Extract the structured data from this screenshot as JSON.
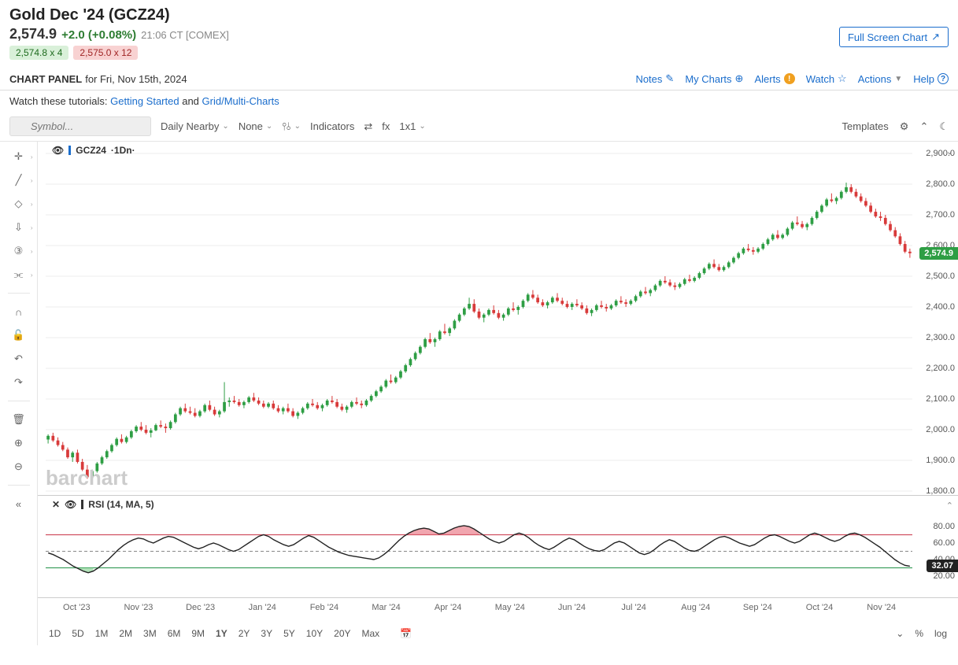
{
  "header": {
    "title": "Gold Dec '24 (GCZ24)",
    "price": "2,574.9",
    "change": "+2.0 (+0.08%)",
    "timestamp": "21:06 CT [COMEX]",
    "bid": "2,574.8 x 4",
    "ask": "2,575.0 x 12",
    "panel_label": "CHART PANEL",
    "panel_date": "for Fri, Nov 15th, 2024",
    "fullscreen": "Full Screen Chart"
  },
  "topnav": {
    "notes": "Notes",
    "mycharts": "My Charts",
    "alerts": "Alerts",
    "watch": "Watch",
    "actions": "Actions",
    "help": "Help"
  },
  "tutorials": {
    "prefix": "Watch these tutorials:",
    "link1": "Getting Started",
    "and": "and",
    "link2": "Grid/Multi-Charts"
  },
  "toolbar": {
    "symbol_placeholder": "Symbol...",
    "nearby": "Daily Nearby",
    "none": "None",
    "indicators": "Indicators",
    "fx": "fx",
    "grid": "1x1",
    "templates": "Templates"
  },
  "chart": {
    "symbol_label": "GCZ24",
    "interval": "·1Dn·",
    "watermark": "barchart",
    "price_tag": "2,574.9",
    "yaxis": {
      "min": 1800,
      "max": 2900,
      "step": 100,
      "labels": [
        "2,900.0",
        "2,800.0",
        "2,700.0",
        "2,600.0",
        "2,500.0",
        "2,400.0",
        "2,300.0",
        "2,200.0",
        "2,100.0",
        "2,000.0",
        "1,900.0",
        "1,800.0"
      ]
    },
    "xaxis": {
      "labels": [
        "Oct '23",
        "Nov '23",
        "Dec '23",
        "Jan '24",
        "Feb '24",
        "Mar '24",
        "Apr '24",
        "May '24",
        "Jun '24",
        "Jul '24",
        "Aug '24",
        "Sep '24",
        "Oct '24",
        "Nov '24"
      ]
    },
    "colors": {
      "up_body": "#2e9e44",
      "down_body": "#d83a3a",
      "wick": "#555",
      "grid": "#eeeeee",
      "tag_bg": "#2e9e44"
    },
    "candles": [
      [
        1968,
        1985,
        1955,
        1980,
        1
      ],
      [
        1980,
        1990,
        1960,
        1965,
        -1
      ],
      [
        1965,
        1975,
        1945,
        1950,
        -1
      ],
      [
        1950,
        1960,
        1930,
        1935,
        -1
      ],
      [
        1935,
        1942,
        1905,
        1910,
        -1
      ],
      [
        1910,
        1930,
        1895,
        1925,
        1
      ],
      [
        1925,
        1935,
        1890,
        1895,
        -1
      ],
      [
        1895,
        1905,
        1865,
        1870,
        -1
      ],
      [
        1870,
        1885,
        1840,
        1845,
        -1
      ],
      [
        1845,
        1870,
        1835,
        1865,
        1
      ],
      [
        1865,
        1895,
        1860,
        1890,
        1
      ],
      [
        1890,
        1915,
        1885,
        1910,
        1
      ],
      [
        1910,
        1935,
        1905,
        1930,
        1
      ],
      [
        1930,
        1955,
        1925,
        1950,
        1
      ],
      [
        1950,
        1975,
        1945,
        1970,
        1
      ],
      [
        1970,
        1985,
        1955,
        1960,
        -1
      ],
      [
        1960,
        1980,
        1955,
        1975,
        1
      ],
      [
        1975,
        2000,
        1970,
        1995,
        1
      ],
      [
        1995,
        2015,
        1990,
        2010,
        1
      ],
      [
        2010,
        2025,
        1995,
        2000,
        -1
      ],
      [
        2000,
        2015,
        1985,
        1990,
        -1
      ],
      [
        1990,
        2005,
        1975,
        1998,
        1
      ],
      [
        1998,
        2020,
        1995,
        2015,
        1
      ],
      [
        2015,
        2030,
        2005,
        2010,
        -1
      ],
      [
        2010,
        2020,
        1990,
        2005,
        -1
      ],
      [
        2005,
        2030,
        2000,
        2025,
        1
      ],
      [
        2025,
        2055,
        2020,
        2050,
        1
      ],
      [
        2050,
        2075,
        2045,
        2070,
        1
      ],
      [
        2070,
        2085,
        2055,
        2060,
        -1
      ],
      [
        2060,
        2075,
        2050,
        2055,
        -1
      ],
      [
        2055,
        2070,
        2040,
        2045,
        -1
      ],
      [
        2045,
        2065,
        2040,
        2060,
        1
      ],
      [
        2060,
        2085,
        2055,
        2080,
        1
      ],
      [
        2080,
        2095,
        2060,
        2065,
        -1
      ],
      [
        2065,
        2075,
        2045,
        2050,
        -1
      ],
      [
        2050,
        2065,
        2040,
        2060,
        1
      ],
      [
        2060,
        2155,
        2055,
        2090,
        1
      ],
      [
        2090,
        2105,
        2075,
        2095,
        1
      ],
      [
        2095,
        2110,
        2085,
        2090,
        -1
      ],
      [
        2090,
        2100,
        2075,
        2080,
        -1
      ],
      [
        2080,
        2095,
        2070,
        2090,
        1
      ],
      [
        2090,
        2110,
        2085,
        2105,
        1
      ],
      [
        2105,
        2120,
        2090,
        2095,
        -1
      ],
      [
        2095,
        2105,
        2080,
        2085,
        -1
      ],
      [
        2085,
        2095,
        2070,
        2075,
        -1
      ],
      [
        2075,
        2090,
        2070,
        2085,
        1
      ],
      [
        2085,
        2095,
        2065,
        2070,
        -1
      ],
      [
        2070,
        2080,
        2055,
        2060,
        -1
      ],
      [
        2060,
        2075,
        2050,
        2070,
        1
      ],
      [
        2070,
        2085,
        2055,
        2060,
        -1
      ],
      [
        2060,
        2070,
        2040,
        2045,
        -1
      ],
      [
        2045,
        2060,
        2035,
        2055,
        1
      ],
      [
        2055,
        2075,
        2050,
        2070,
        1
      ],
      [
        2070,
        2090,
        2065,
        2085,
        1
      ],
      [
        2085,
        2100,
        2075,
        2080,
        -1
      ],
      [
        2080,
        2090,
        2065,
        2070,
        -1
      ],
      [
        2070,
        2085,
        2060,
        2080,
        1
      ],
      [
        2080,
        2100,
        2075,
        2095,
        1
      ],
      [
        2095,
        2110,
        2085,
        2090,
        -1
      ],
      [
        2090,
        2100,
        2070,
        2075,
        -1
      ],
      [
        2075,
        2085,
        2060,
        2065,
        -1
      ],
      [
        2065,
        2080,
        2055,
        2075,
        1
      ],
      [
        2075,
        2095,
        2070,
        2090,
        1
      ],
      [
        2090,
        2105,
        2080,
        2085,
        -1
      ],
      [
        2085,
        2095,
        2070,
        2080,
        -1
      ],
      [
        2080,
        2100,
        2075,
        2095,
        1
      ],
      [
        2095,
        2115,
        2090,
        2110,
        1
      ],
      [
        2110,
        2130,
        2105,
        2125,
        1
      ],
      [
        2125,
        2145,
        2120,
        2140,
        1
      ],
      [
        2140,
        2165,
        2135,
        2160,
        1
      ],
      [
        2160,
        2180,
        2150,
        2155,
        -1
      ],
      [
        2155,
        2175,
        2150,
        2170,
        1
      ],
      [
        2170,
        2195,
        2165,
        2190,
        1
      ],
      [
        2190,
        2215,
        2185,
        2210,
        1
      ],
      [
        2210,
        2235,
        2205,
        2230,
        1
      ],
      [
        2230,
        2255,
        2225,
        2250,
        1
      ],
      [
        2250,
        2275,
        2245,
        2270,
        1
      ],
      [
        2270,
        2300,
        2265,
        2295,
        1
      ],
      [
        2295,
        2315,
        2280,
        2285,
        -1
      ],
      [
        2285,
        2300,
        2270,
        2295,
        1
      ],
      [
        2295,
        2325,
        2290,
        2320,
        1
      ],
      [
        2320,
        2345,
        2310,
        2315,
        -1
      ],
      [
        2315,
        2335,
        2305,
        2330,
        1
      ],
      [
        2330,
        2360,
        2325,
        2355,
        1
      ],
      [
        2355,
        2380,
        2350,
        2375,
        1
      ],
      [
        2375,
        2400,
        2370,
        2395,
        1
      ],
      [
        2395,
        2430,
        2390,
        2410,
        1
      ],
      [
        2410,
        2425,
        2380,
        2385,
        -1
      ],
      [
        2385,
        2395,
        2360,
        2365,
        -1
      ],
      [
        2365,
        2380,
        2350,
        2375,
        1
      ],
      [
        2375,
        2395,
        2370,
        2390,
        1
      ],
      [
        2390,
        2405,
        2375,
        2380,
        -1
      ],
      [
        2380,
        2390,
        2360,
        2365,
        -1
      ],
      [
        2365,
        2380,
        2355,
        2375,
        1
      ],
      [
        2375,
        2400,
        2370,
        2395,
        1
      ],
      [
        2395,
        2415,
        2385,
        2390,
        -1
      ],
      [
        2390,
        2405,
        2375,
        2400,
        1
      ],
      [
        2400,
        2425,
        2395,
        2420,
        1
      ],
      [
        2420,
        2445,
        2415,
        2440,
        1
      ],
      [
        2440,
        2455,
        2425,
        2430,
        -1
      ],
      [
        2430,
        2440,
        2410,
        2415,
        -1
      ],
      [
        2415,
        2425,
        2400,
        2405,
        -1
      ],
      [
        2405,
        2420,
        2395,
        2415,
        1
      ],
      [
        2415,
        2435,
        2410,
        2430,
        1
      ],
      [
        2430,
        2445,
        2415,
        2420,
        -1
      ],
      [
        2420,
        2430,
        2405,
        2410,
        -1
      ],
      [
        2410,
        2420,
        2395,
        2400,
        -1
      ],
      [
        2400,
        2415,
        2390,
        2410,
        1
      ],
      [
        2410,
        2425,
        2400,
        2405,
        -1
      ],
      [
        2405,
        2415,
        2390,
        2395,
        -1
      ],
      [
        2395,
        2405,
        2375,
        2380,
        -1
      ],
      [
        2380,
        2395,
        2370,
        2390,
        1
      ],
      [
        2390,
        2410,
        2385,
        2405,
        1
      ],
      [
        2405,
        2420,
        2395,
        2400,
        -1
      ],
      [
        2400,
        2410,
        2385,
        2395,
        -1
      ],
      [
        2395,
        2410,
        2390,
        2405,
        1
      ],
      [
        2405,
        2425,
        2400,
        2420,
        1
      ],
      [
        2420,
        2435,
        2410,
        2415,
        -1
      ],
      [
        2415,
        2425,
        2400,
        2410,
        -1
      ],
      [
        2410,
        2425,
        2405,
        2420,
        1
      ],
      [
        2420,
        2440,
        2415,
        2435,
        1
      ],
      [
        2435,
        2455,
        2430,
        2450,
        1
      ],
      [
        2450,
        2465,
        2440,
        2445,
        -1
      ],
      [
        2445,
        2460,
        2435,
        2455,
        1
      ],
      [
        2455,
        2475,
        2450,
        2470,
        1
      ],
      [
        2470,
        2490,
        2465,
        2485,
        1
      ],
      [
        2485,
        2500,
        2475,
        2480,
        -1
      ],
      [
        2480,
        2490,
        2465,
        2470,
        -1
      ],
      [
        2470,
        2480,
        2455,
        2465,
        -1
      ],
      [
        2465,
        2480,
        2460,
        2475,
        1
      ],
      [
        2475,
        2495,
        2470,
        2490,
        1
      ],
      [
        2490,
        2505,
        2480,
        2485,
        -1
      ],
      [
        2485,
        2500,
        2480,
        2495,
        1
      ],
      [
        2495,
        2515,
        2490,
        2510,
        1
      ],
      [
        2510,
        2530,
        2505,
        2525,
        1
      ],
      [
        2525,
        2545,
        2520,
        2540,
        1
      ],
      [
        2540,
        2555,
        2525,
        2530,
        -1
      ],
      [
        2530,
        2540,
        2515,
        2520,
        -1
      ],
      [
        2520,
        2535,
        2515,
        2530,
        1
      ],
      [
        2530,
        2550,
        2525,
        2545,
        1
      ],
      [
        2545,
        2565,
        2540,
        2560,
        1
      ],
      [
        2560,
        2580,
        2555,
        2575,
        1
      ],
      [
        2575,
        2595,
        2570,
        2590,
        1
      ],
      [
        2590,
        2605,
        2580,
        2585,
        -1
      ],
      [
        2585,
        2595,
        2570,
        2580,
        -1
      ],
      [
        2580,
        2595,
        2575,
        2590,
        1
      ],
      [
        2590,
        2610,
        2585,
        2605,
        1
      ],
      [
        2605,
        2625,
        2600,
        2620,
        1
      ],
      [
        2620,
        2640,
        2615,
        2635,
        1
      ],
      [
        2635,
        2650,
        2620,
        2625,
        -1
      ],
      [
        2625,
        2640,
        2620,
        2635,
        1
      ],
      [
        2635,
        2660,
        2630,
        2655,
        1
      ],
      [
        2655,
        2680,
        2650,
        2675,
        1
      ],
      [
        2675,
        2695,
        2665,
        2670,
        -1
      ],
      [
        2670,
        2680,
        2655,
        2660,
        -1
      ],
      [
        2660,
        2675,
        2650,
        2670,
        1
      ],
      [
        2670,
        2695,
        2665,
        2690,
        1
      ],
      [
        2690,
        2715,
        2685,
        2710,
        1
      ],
      [
        2710,
        2735,
        2705,
        2730,
        1
      ],
      [
        2730,
        2755,
        2725,
        2750,
        1
      ],
      [
        2750,
        2770,
        2740,
        2745,
        -1
      ],
      [
        2745,
        2760,
        2735,
        2755,
        1
      ],
      [
        2755,
        2780,
        2750,
        2775,
        1
      ],
      [
        2775,
        2805,
        2770,
        2790,
        1
      ],
      [
        2790,
        2800,
        2770,
        2775,
        -1
      ],
      [
        2775,
        2785,
        2755,
        2760,
        -1
      ],
      [
        2760,
        2770,
        2740,
        2745,
        -1
      ],
      [
        2745,
        2755,
        2725,
        2730,
        -1
      ],
      [
        2730,
        2740,
        2705,
        2710,
        -1
      ],
      [
        2710,
        2720,
        2690,
        2695,
        -1
      ],
      [
        2695,
        2710,
        2680,
        2690,
        -1
      ],
      [
        2690,
        2700,
        2665,
        2670,
        -1
      ],
      [
        2670,
        2680,
        2645,
        2650,
        -1
      ],
      [
        2650,
        2660,
        2625,
        2630,
        -1
      ],
      [
        2630,
        2640,
        2600,
        2605,
        -1
      ],
      [
        2605,
        2615,
        2575,
        2580,
        -1
      ],
      [
        2580,
        2590,
        2560,
        2575,
        -1
      ]
    ]
  },
  "rsi": {
    "label": "RSI (14, MA, 5)",
    "tag": "32.07",
    "yaxis": {
      "labels": [
        "80.00",
        "60.00",
        "40.00",
        "20.00"
      ],
      "vals": [
        80,
        60,
        40,
        20
      ]
    },
    "upper": 70,
    "mid": 50,
    "lower": 30,
    "colors": {
      "line": "#222",
      "over": "#e86b7a",
      "under": "#7fcf8a",
      "upper_line": "#d05060",
      "lower_line": "#40a060",
      "mid_line": "#888"
    },
    "values": [
      48,
      46,
      43,
      40,
      36,
      32,
      29,
      26,
      24,
      26,
      30,
      35,
      40,
      46,
      52,
      57,
      61,
      64,
      66,
      65,
      62,
      60,
      63,
      66,
      68,
      67,
      64,
      61,
      58,
      55,
      53,
      55,
      58,
      60,
      58,
      55,
      52,
      50,
      52,
      56,
      60,
      64,
      68,
      70,
      68,
      64,
      61,
      58,
      56,
      58,
      62,
      66,
      69,
      67,
      63,
      59,
      55,
      52,
      49,
      47,
      45,
      44,
      43,
      42,
      41,
      40,
      42,
      46,
      51,
      57,
      63,
      68,
      72,
      75,
      77,
      78,
      77,
      74,
      71,
      72,
      75,
      78,
      80,
      81,
      80,
      77,
      73,
      69,
      65,
      62,
      60,
      62,
      66,
      70,
      72,
      70,
      66,
      61,
      57,
      54,
      52,
      55,
      59,
      63,
      66,
      64,
      60,
      56,
      53,
      51,
      50,
      52,
      56,
      60,
      62,
      60,
      56,
      52,
      48,
      46,
      48,
      52,
      57,
      61,
      64,
      62,
      58,
      54,
      51,
      50,
      52,
      56,
      60,
      64,
      67,
      68,
      66,
      63,
      60,
      58,
      56,
      58,
      62,
      66,
      69,
      70,
      68,
      65,
      62,
      60,
      62,
      66,
      70,
      72,
      70,
      67,
      64,
      62,
      64,
      68,
      71,
      72,
      70,
      67,
      63,
      59,
      55,
      50,
      45,
      40,
      36,
      33,
      32
    ]
  },
  "timeframes": [
    "1D",
    "5D",
    "1M",
    "2M",
    "3M",
    "6M",
    "9M",
    "1Y",
    "2Y",
    "3Y",
    "5Y",
    "10Y",
    "20Y",
    "Max"
  ],
  "tf_active": "1Y"
}
